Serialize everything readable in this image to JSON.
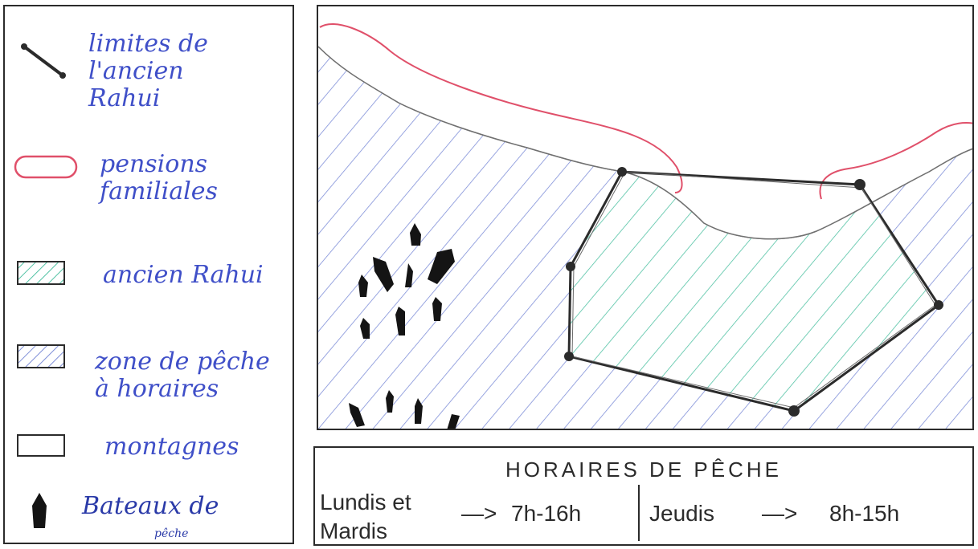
{
  "legend": {
    "items": [
      {
        "id": "old-rahui-boundary",
        "label": "limites de\nl'ancien\nRahui",
        "symbol": "boundary-line-icon"
      },
      {
        "id": "guesthouses",
        "label": "pensions\nfamiliales",
        "symbol": "pink-outline-icon"
      },
      {
        "id": "old-rahui-zone",
        "label": "ancien Rahui",
        "symbol": "green-hatch-icon"
      },
      {
        "id": "fishing-zone",
        "label": "zone de pêche\nà horaires",
        "symbol": "blue-hatch-icon"
      },
      {
        "id": "mountains",
        "label": "montagnes",
        "symbol": "empty-box-icon"
      },
      {
        "id": "boats",
        "label": "Bateaux de",
        "sublabel": "pêche",
        "symbol": "boat-icon"
      }
    ]
  },
  "schedule": {
    "title": "HORAIRES DE PÊCHE",
    "group1_days": "Lundis et\nMardis",
    "group1_arrow": "—>",
    "group1_hours": "7h-16h",
    "group2_days": "Jeudis",
    "group2_arrow": "—>",
    "group2_hours": "8h-15h"
  },
  "colors": {
    "ink": "#2b2b2b",
    "blue_hatch": "#7f8fd8",
    "green_hatch": "#52c2a4",
    "guesthouse_pink": "#e0506a",
    "label_blue": "#3f4fc8",
    "boat": "#141414"
  }
}
